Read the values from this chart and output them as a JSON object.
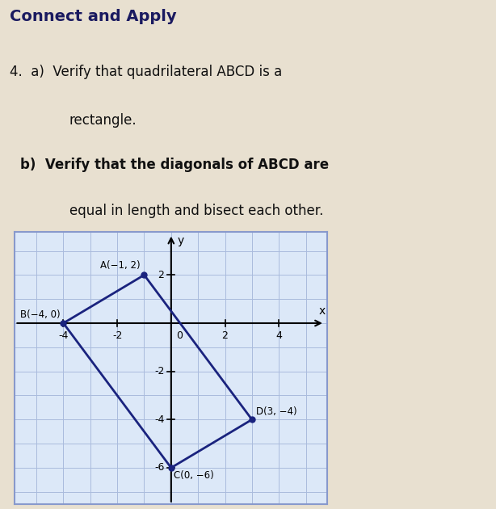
{
  "title": "Connect and Apply",
  "line1": "4.  a)  Verify that quadrilateral ABCD is a",
  "line2": "        rectangle.",
  "line3": "  b)  Verify that the diagonals of ABCD are",
  "line4": "        equal in length and bisect each other.",
  "points": {
    "A": [
      -1,
      2
    ],
    "B": [
      -4,
      0
    ],
    "C": [
      0,
      -6
    ],
    "D": [
      3,
      -4
    ]
  },
  "point_labels": {
    "A": "A(−1, 2)",
    "B": "B(−4, 0)",
    "C": "C(0, −6)",
    "D": "D(3, −4)"
  },
  "xlim": [
    -5.8,
    5.8
  ],
  "ylim": [
    -7.5,
    3.8
  ],
  "xticks": [
    -4,
    -2,
    2,
    4
  ],
  "ytick_labels": [
    "-6",
    "-4",
    "-2",
    "2"
  ],
  "ytick_vals": [
    -6,
    -4,
    -2,
    2
  ],
  "grid_color": "#aabbdd",
  "quad_color": "#1a237e",
  "quad_lw": 2.0,
  "dot_color": "#1a237e",
  "dot_size": 5,
  "bg_color": "#dce8f8",
  "page_bg": "#e8e0d0",
  "border_color": "#8899cc",
  "xlabel": "x",
  "ylabel": "y"
}
